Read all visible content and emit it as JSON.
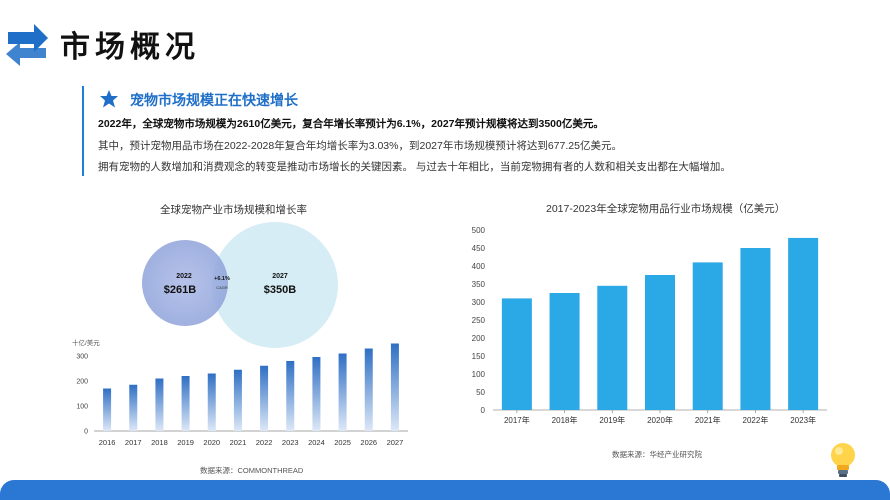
{
  "header": {
    "title": "市场概况"
  },
  "intro": {
    "subtitle": "宠物市场规模正在快速增长",
    "line1": "2022年，全球宠物市场规模为2610亿美元，复合年增长率预计为6.1%，2027年预计规模将达到3500亿美元。",
    "line2": "其中，预计宠物用品市场在2022-2028年复合年均增长率为3.03%，到2027年市场规模预计将达到677.25亿美元。",
    "line3": "拥有宠物的人数增加和消费观念的转变是推动市场增长的关键因素。 与过去十年相比，当前宠物拥有者的人数和相关支出都在大幅增加。"
  },
  "left": {
    "title": "全球宠物产业市场规模和增长率",
    "source": "数据来源：COMMONTHREAD",
    "bubbles": {
      "small": {
        "year": "2022",
        "value": "$261B"
      },
      "big": {
        "year": "2027",
        "value": "$350B"
      },
      "cagr_value": "+6.1%",
      "cagr_label": "CAGR"
    }
  },
  "right": {
    "title": "2017-2023年全球宠物用品行业市场规模（亿美元）",
    "source": "数据来源：华经产业研究院"
  },
  "colors": {
    "accent": "#1f6fc8",
    "bar_right": "#2aa9e6",
    "bar_left": "#2f6fc4",
    "footer": "#2a77d4"
  },
  "chart_data": [
    {
      "type": "bar",
      "title": "全球宠物产业市场规模和增长率",
      "ylabel": "十亿/美元",
      "categories": [
        "2016",
        "2017",
        "2018",
        "2019",
        "2020",
        "2021",
        "2022",
        "2023",
        "2024",
        "2025",
        "2026",
        "2027"
      ],
      "values": [
        170,
        185,
        210,
        220,
        230,
        245,
        261,
        280,
        296,
        310,
        330,
        350
      ],
      "ylim": [
        0,
        300
      ],
      "yticks": [
        0,
        100,
        200,
        300
      ],
      "grid": false
    },
    {
      "type": "bar",
      "title": "2017-2023年全球宠物用品行业市场规模（亿美元）",
      "categories": [
        "2017年",
        "2018年",
        "2019年",
        "2020年",
        "2021年",
        "2022年",
        "2023年"
      ],
      "values": [
        310,
        325,
        345,
        375,
        410,
        450,
        478
      ],
      "ylim": [
        0,
        500
      ],
      "yticks": [
        0,
        50,
        100,
        150,
        200,
        250,
        300,
        350,
        400,
        450,
        500
      ],
      "grid": false
    }
  ]
}
